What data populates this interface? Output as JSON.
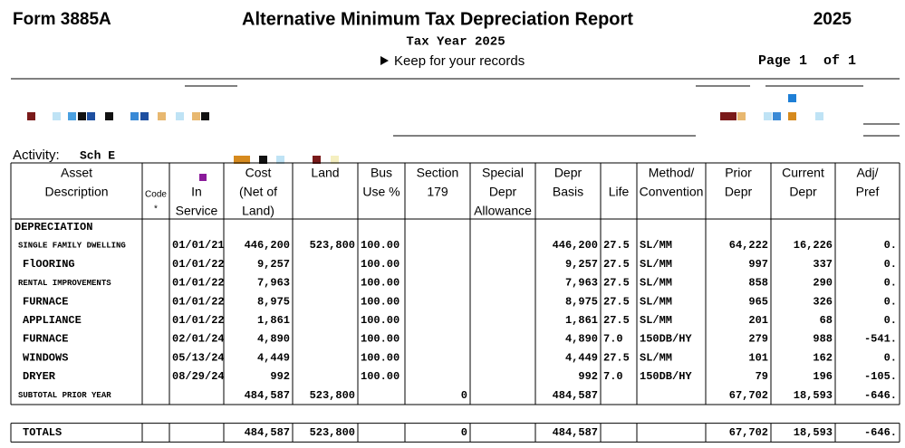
{
  "header": {
    "form": "Form 3885A",
    "title": "Alternative Minimum Tax Depreciation Report",
    "year": "2025",
    "subtitle": "Tax Year 2025",
    "keep": "Keep for your records",
    "page": "Page 1  of 1"
  },
  "activity": {
    "label": "Activity:",
    "value": "Sch E"
  },
  "table": {
    "columns": [
      [
        "Asset",
        "Description"
      ],
      [
        "Code",
        "*"
      ],
      [
        "In",
        "Service"
      ],
      [
        "Cost",
        "(Net of",
        "Land)"
      ],
      [
        "Land"
      ],
      [
        "Bus",
        "Use %"
      ],
      [
        "Section",
        "179"
      ],
      [
        "Special",
        "Depr",
        "Allowance"
      ],
      [
        "Depr",
        "Basis"
      ],
      [
        "Life"
      ],
      [
        "Method/",
        "Convention"
      ],
      [
        "Prior",
        "Depr"
      ],
      [
        "Current",
        "Depr"
      ],
      [
        "Adj/",
        "Pref"
      ]
    ],
    "section": "DEPRECIATION",
    "rows": [
      [
        "SINGLE FAMILY DWELLING",
        null,
        "01/01/21",
        "446,200",
        "523,800",
        "100.00",
        null,
        null,
        "446,200",
        "27.5",
        "SL/MM",
        "64,222",
        "16,226",
        "0."
      ],
      [
        "FlOORING",
        null,
        "01/01/22",
        "9,257",
        null,
        "100.00",
        null,
        null,
        "9,257",
        "27.5",
        "SL/MM",
        "997",
        "337",
        "0."
      ],
      [
        "RENTAL IMPROVEMENTS",
        null,
        "01/01/22",
        "7,963",
        null,
        "100.00",
        null,
        null,
        "7,963",
        "27.5",
        "SL/MM",
        "858",
        "290",
        "0."
      ],
      [
        "FURNACE",
        null,
        "01/01/22",
        "8,975",
        null,
        "100.00",
        null,
        null,
        "8,975",
        "27.5",
        "SL/MM",
        "965",
        "326",
        "0."
      ],
      [
        "APPLIANCE",
        null,
        "01/01/22",
        "1,861",
        null,
        "100.00",
        null,
        null,
        "1,861",
        "27.5",
        "SL/MM",
        "201",
        "68",
        "0."
      ],
      [
        "FURNACE",
        null,
        "02/01/24",
        "4,890",
        null,
        "100.00",
        null,
        null,
        "4,890",
        "7.0",
        "150DB/HY",
        "279",
        "988",
        "-541."
      ],
      [
        "WINDOWS",
        null,
        "05/13/24",
        "4,449",
        null,
        "100.00",
        null,
        null,
        "4,449",
        "27.5",
        "SL/MM",
        "101",
        "162",
        "0."
      ],
      [
        "DRYER",
        null,
        "08/29/24",
        "992",
        null,
        "100.00",
        null,
        null,
        "992",
        "7.0",
        "150DB/HY",
        "79",
        "196",
        "-105."
      ],
      [
        "SUBTOTAL PRIOR YEAR",
        null,
        null,
        "484,587",
        "523,800",
        null,
        "0",
        null,
        "484,587",
        null,
        null,
        "67,702",
        "18,593",
        "-646."
      ]
    ],
    "totals": [
      "TOTALS",
      null,
      null,
      "484,587",
      "523,800",
      null,
      "0",
      null,
      "484,587",
      null,
      null,
      "67,702",
      "18,593",
      "-646."
    ]
  }
}
